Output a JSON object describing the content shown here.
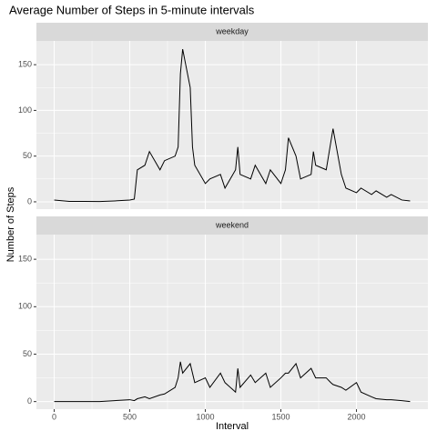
{
  "chart_data": {
    "type": "line",
    "title": "Average Number of Steps in 5-minute intervals",
    "x_label": "Interval",
    "y_label": "Number of Steps",
    "color": "#000000",
    "grid": true,
    "xlim": [
      -117.75,
      2472.75
    ],
    "xticks": [
      0,
      500,
      1000,
      1500,
      2000
    ],
    "ylim": [
      -8,
      176
    ],
    "yticks": [
      0,
      50,
      100,
      150
    ],
    "x": [
      0,
      100,
      200,
      300,
      400,
      500,
      530,
      550,
      600,
      630,
      700,
      730,
      800,
      820,
      835,
      850,
      900,
      915,
      930,
      1000,
      1030,
      1100,
      1130,
      1200,
      1215,
      1230,
      1300,
      1330,
      1400,
      1430,
      1500,
      1530,
      1550,
      1600,
      1630,
      1700,
      1715,
      1730,
      1800,
      1830,
      1845,
      1900,
      1930,
      2000,
      2030,
      2100,
      2130,
      2200,
      2230,
      2300,
      2355
    ],
    "panels": [
      {
        "name": "weekday",
        "values": [
          2,
          0.5,
          0.5,
          0.3,
          1,
          2,
          3,
          35,
          40,
          55,
          35,
          45,
          50,
          60,
          140,
          167,
          125,
          60,
          40,
          20,
          25,
          30,
          15,
          35,
          60,
          30,
          25,
          40,
          20,
          35,
          20,
          35,
          70,
          50,
          25,
          30,
          55,
          40,
          35,
          65,
          80,
          30,
          15,
          10,
          15,
          8,
          12,
          5,
          8,
          2,
          1
        ]
      },
      {
        "name": "weekend",
        "values": [
          0,
          0,
          0,
          0,
          1,
          2,
          1,
          3,
          5,
          3,
          7,
          8,
          15,
          25,
          42,
          30,
          40,
          30,
          20,
          25,
          15,
          30,
          20,
          10,
          35,
          15,
          28,
          20,
          30,
          15,
          25,
          30,
          30,
          40,
          25,
          35,
          30,
          25,
          25,
          20,
          18,
          15,
          12,
          20,
          10,
          5,
          3,
          2,
          2,
          1,
          0
        ]
      }
    ]
  }
}
